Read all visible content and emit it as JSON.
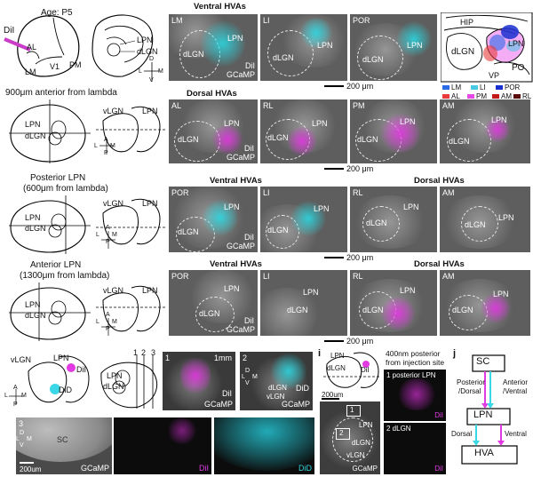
{
  "top_left": {
    "dil_label": "DiI",
    "age_label": "Age: P5",
    "al": "AL",
    "lm": "LM",
    "v1": "V1",
    "pm": "PM",
    "lpn": "LPN",
    "dlgn": "dLGN",
    "d": "D",
    "lm_axis": "L",
    "m": "M",
    "v": "V"
  },
  "row1": {
    "header": "Ventral HVAs",
    "panels": [
      {
        "tag": "LM",
        "lpn": "LPN",
        "dlgn": "dLGN",
        "dil": "DiI",
        "gcamp": "GCaMP"
      },
      {
        "tag": "LI",
        "lpn": "LPN",
        "dlgn": "dLGN"
      },
      {
        "tag": "POR",
        "lpn": "LPN",
        "dlgn": "dLGN"
      }
    ],
    "scale": "200 μm"
  },
  "schematic": {
    "hip": "HIP",
    "lpn": "LPN",
    "dlgn": "dLGN",
    "vp": "VP",
    "po": "PO",
    "legend": [
      {
        "label": "LM",
        "color": "#2b6be8"
      },
      {
        "label": "LI",
        "color": "#47c9e6"
      },
      {
        "label": "POR",
        "color": "#1a2fd0"
      },
      {
        "label": "AL",
        "color": "#e83a3a"
      },
      {
        "label": "PM",
        "color": "#e64ae6"
      },
      {
        "label": "AM",
        "color": "#c01818"
      },
      {
        "label": "RL",
        "color": "#5a0c0c"
      }
    ]
  },
  "row2": {
    "left_title": "900μm anterior from lambda",
    "lpn": "LPN",
    "dlgn": "dLGN",
    "vlgn": "vLGN",
    "axis_a": "A",
    "axis_p": "P",
    "axis_l": "L",
    "axis_m": "M",
    "header": "Dorsal HVAs",
    "panels": [
      {
        "tag": "AL",
        "lpn": "LPN",
        "dlgn": "dLGN",
        "dil": "DiI",
        "gcamp": "GCaMP"
      },
      {
        "tag": "RL",
        "lpn": "LPN",
        "dlgn": "dLGN"
      },
      {
        "tag": "PM",
        "lpn": "LPN",
        "dlgn": "dLGN"
      },
      {
        "tag": "AM",
        "lpn": "LPN",
        "dlgn": "dLGN"
      }
    ],
    "scale": "200 μm"
  },
  "row3": {
    "left_title_1": "Posterior LPN",
    "left_title_2": "(600μm from lambda)",
    "lpn": "LPN",
    "dlgn": "dLGN",
    "vlgn": "vLGN",
    "axis_a": "A",
    "axis_p": "P",
    "axis_l": "L",
    "axis_m": "M",
    "header_left": "Ventral HVAs",
    "header_right": "Dorsal HVAs",
    "panels": [
      {
        "tag": "POR",
        "lpn": "LPN",
        "dlgn": "dLGN",
        "dil": "DiI",
        "gcamp": "GCaMP"
      },
      {
        "tag": "LI",
        "lpn": "LPN",
        "dlgn": "dLGN"
      },
      {
        "tag": "RL",
        "lpn": "LPN",
        "dlgn": "dLGN"
      },
      {
        "tag": "AM",
        "lpn": "LPN",
        "dlgn": "dLGN"
      }
    ],
    "scale": "200 μm"
  },
  "row4": {
    "left_title_1": "Anterior LPN",
    "left_title_2": "(1300μm from lambda)",
    "lpn": "LPN",
    "dlgn": "dLGN",
    "vlgn": "vLGN",
    "axis_a": "A",
    "axis_p": "P",
    "axis_l": "L",
    "axis_m": "M",
    "header_left": "Ventral HVAs",
    "header_right": "Dorsal HVAs",
    "panels": [
      {
        "tag": "POR",
        "lpn": "LPN",
        "dlgn": "dLGN",
        "dil": "DiI",
        "gcamp": "GCaMP"
      },
      {
        "tag": "LI",
        "lpn": "LPN",
        "dlgn": "dLGN"
      },
      {
        "tag": "RL",
        "lpn": "LPN",
        "dlgn": "dLGN"
      },
      {
        "tag": "AM",
        "lpn": "LPN",
        "dlgn": "dLGN"
      }
    ],
    "scale": "200 μm"
  },
  "bottom": {
    "vlgn": "vLGN",
    "lpn": "LPN",
    "dil": "DiI",
    "did": "DiD",
    "axis_a": "A",
    "axis_p": "P",
    "axis_l": "L",
    "axis_m": "M",
    "num_1": "1",
    "num_2": "2",
    "num_3": "3",
    "dlgn": "dLGN",
    "slice1": {
      "tag": "1",
      "scale": "1mm",
      "gcamp": "GCaMP",
      "dil": "DiI"
    },
    "slice2": {
      "tag": "2",
      "d": "D",
      "l": "L",
      "m": "M",
      "v": "V",
      "dlgn": "dLGN",
      "vlgn": "vLGN",
      "gcamp": "GCaMP",
      "did": "DiD"
    },
    "row3": {
      "tag": "3",
      "d": "D",
      "l": "L",
      "m": "M",
      "v": "V",
      "sc": "SC",
      "gcamp": "GCaMP",
      "dil": "DiI",
      "did": "DiD",
      "scale": "200um"
    }
  },
  "panel_i": {
    "letter": "i",
    "lpn": "LPN",
    "dlgn": "dLGN",
    "dil": "DiI",
    "scale": "200um",
    "box1": "1",
    "box2": "2",
    "vlgn": "vLGN",
    "gcamp": "GCaMP",
    "note_1": "400nm posterior",
    "note_2": "from injection site",
    "img1_label": "1 posterior LPN",
    "img1_dil": "DiI",
    "img2_label": "2   dLGN",
    "img2_dil": "DiI"
  },
  "panel_j": {
    "letter": "j",
    "sc": "SC",
    "posterior_1": "Posterior",
    "posterior_2": "/Dorsal",
    "anterior_1": "Anterior",
    "anterior_2": "/Ventral",
    "lpn": "LPN",
    "dorsal": "Dorsal",
    "ventral": "Ventral",
    "hva": "HVA"
  }
}
